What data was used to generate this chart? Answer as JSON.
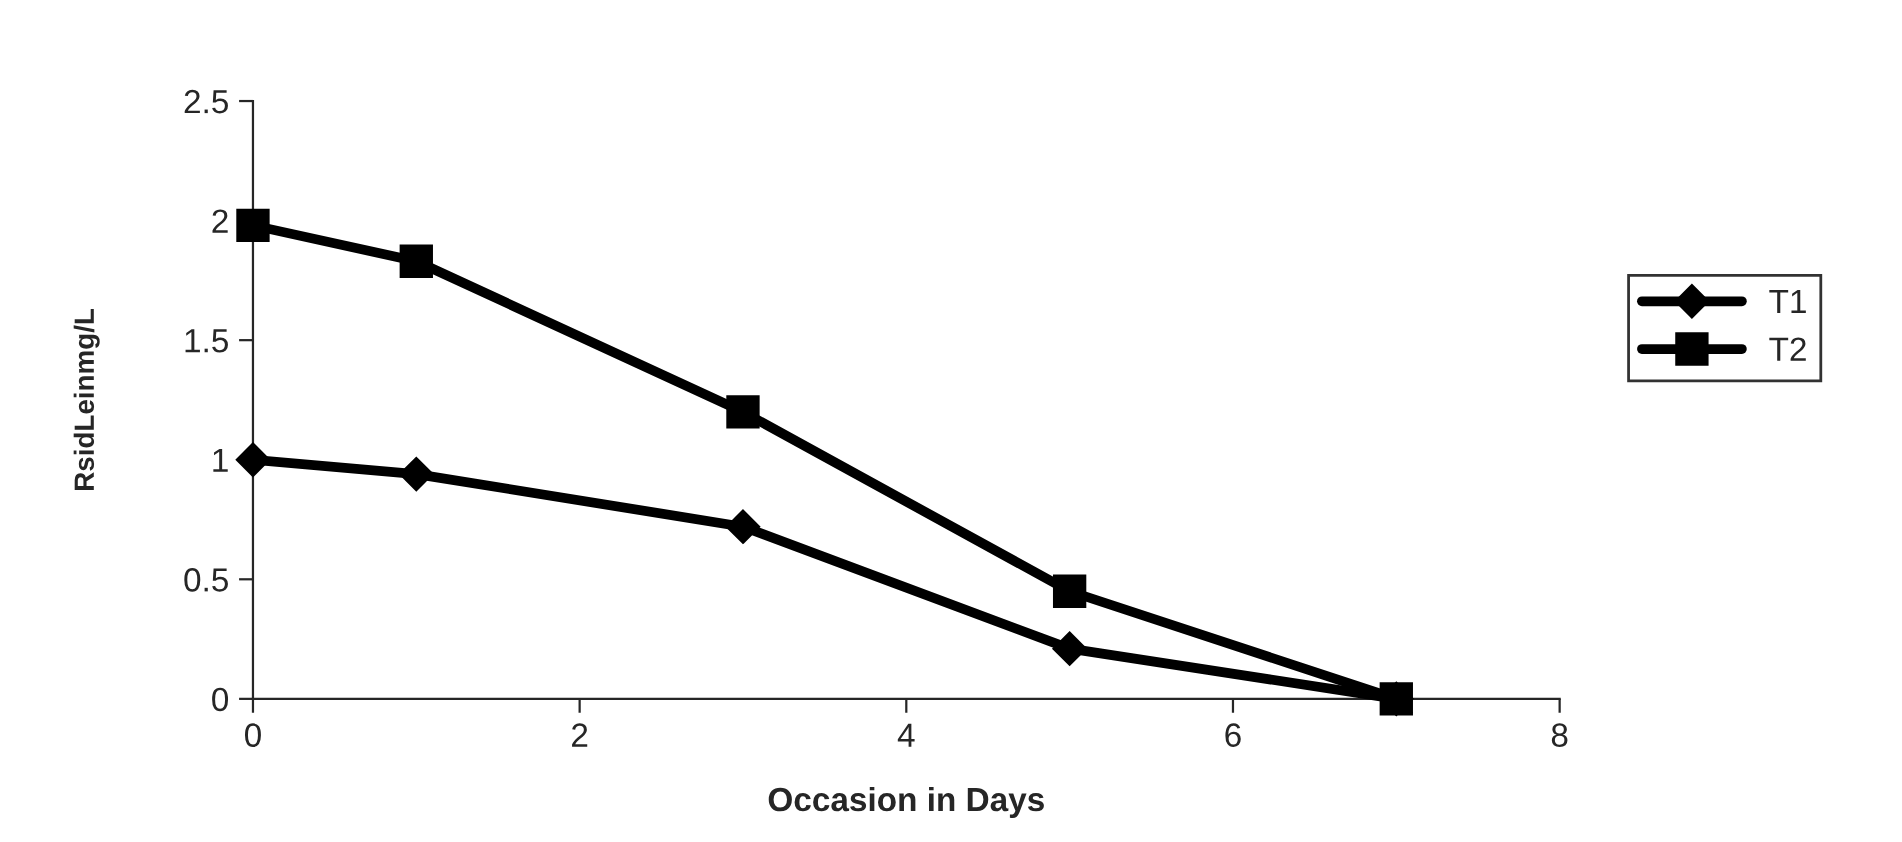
{
  "chart_data": {
    "type": "line",
    "xlabel": "Occasion in Days",
    "ylabel": "RsidLeinmg/L",
    "x": [
      0,
      1,
      3,
      5,
      7
    ],
    "series": [
      {
        "name": "T1",
        "color": "#000000",
        "marker": "diamond",
        "values": [
          1.0,
          0.94,
          0.72,
          0.21,
          0.0
        ]
      },
      {
        "name": "T2",
        "color": "#000000",
        "marker": "square",
        "values": [
          1.98,
          1.83,
          1.2,
          0.45,
          0.0
        ]
      }
    ],
    "xlim": [
      0,
      8
    ],
    "xticks": [
      0,
      2,
      4,
      6,
      8
    ],
    "ylim": [
      0,
      2.5
    ],
    "yticks": [
      0,
      0.5,
      1,
      1.5,
      2,
      2.5
    ],
    "grid": false,
    "legend": "right",
    "line_style": "solid"
  }
}
